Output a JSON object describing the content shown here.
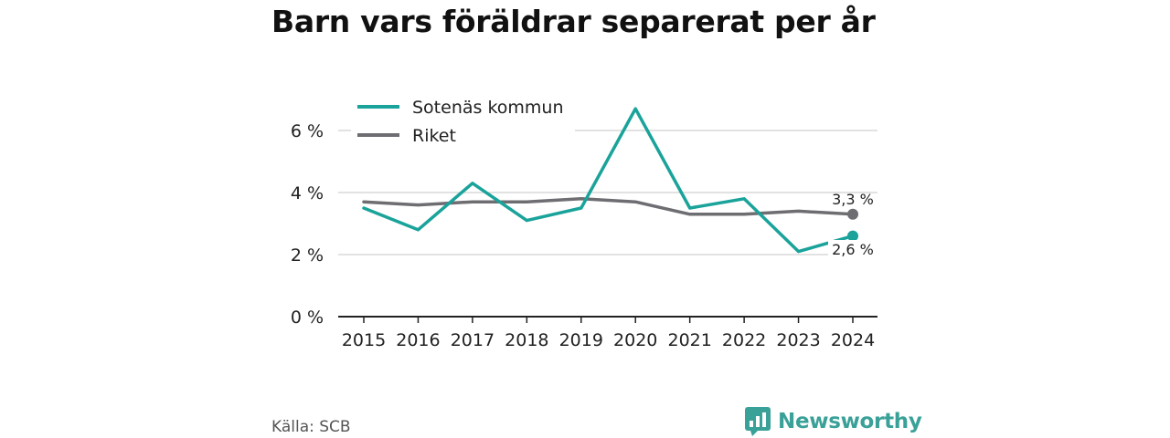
{
  "title": "Barn vars föräldrar separerat per år",
  "source": "Källa: SCB",
  "brand": {
    "name": "Newsworthy",
    "icon": "bar-chart-speech-icon",
    "color": "#3aa198"
  },
  "chart_data": {
    "type": "line",
    "x": [
      "2015",
      "2016",
      "2017",
      "2018",
      "2019",
      "2020",
      "2021",
      "2022",
      "2023",
      "2024"
    ],
    "series": [
      {
        "name": "Sotenäs kommun",
        "color": "#1aa39a",
        "values": [
          3.5,
          2.8,
          4.3,
          3.1,
          3.5,
          6.7,
          3.5,
          3.8,
          2.1,
          2.6
        ]
      },
      {
        "name": "Riket",
        "color": "#6e6d72",
        "values": [
          3.7,
          3.6,
          3.7,
          3.7,
          3.8,
          3.7,
          3.3,
          3.3,
          3.4,
          3.3
        ]
      }
    ],
    "ylim": [
      0,
      7
    ],
    "yticks": [
      0,
      2,
      4,
      6
    ],
    "ytick_labels": [
      "0 %",
      "2 %",
      "4 %",
      "6 %"
    ],
    "end_labels": [
      "2,6 %",
      "3,3 %"
    ],
    "legend_position": "top-left",
    "grid": "horizontal"
  }
}
